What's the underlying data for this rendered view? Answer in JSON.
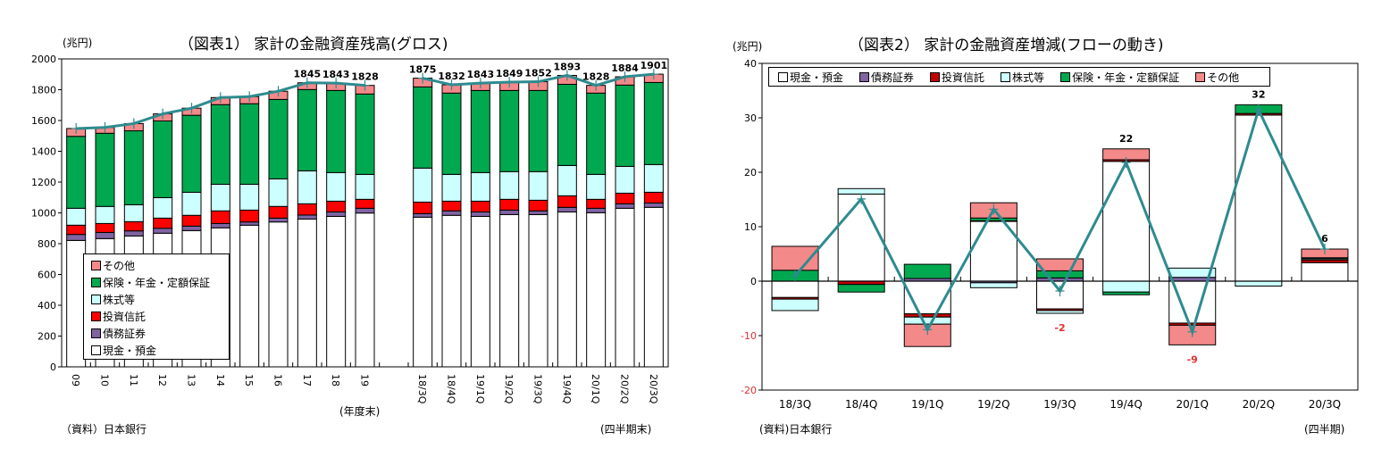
{
  "chart_data": [
    {
      "type": "bar",
      "stacked": true,
      "title": "（図表1） 家計の金融資産残高(グロス)",
      "ylabel": "(兆円)",
      "ylim": [
        0,
        2000
      ],
      "ytick_step": 200,
      "xnotes": [
        "(年度末)",
        "(四半期末)"
      ],
      "source": "（資料）日本銀行",
      "categories": [
        "09",
        "10",
        "11",
        "12",
        "13",
        "14",
        "15",
        "16",
        "17",
        "18",
        "19",
        "18/3Q",
        "18/4Q",
        "19/1Q",
        "19/2Q",
        "19/3Q",
        "19/4Q",
        "20/1Q",
        "20/2Q",
        "20/3Q"
      ],
      "series": [
        {
          "name": "現金・預金",
          "color": "#ffffff",
          "values": [
            821,
            833,
            850,
            868,
            885,
            903,
            920,
            941,
            960,
            977,
            999,
            972,
            984,
            977,
            989,
            989,
            1006,
            1001,
            1030,
            1036
          ]
        },
        {
          "name": "債務証券",
          "color": "#8064a2",
          "values": [
            39,
            40,
            33,
            32,
            29,
            28,
            21,
            25,
            26,
            29,
            31,
            23,
            29,
            29,
            29,
            24,
            30,
            29,
            29,
            28
          ]
        },
        {
          "name": "投資信託",
          "color": "#ff0000",
          "values": [
            60,
            58,
            60,
            66,
            70,
            82,
            77,
            76,
            73,
            70,
            58,
            75,
            63,
            70,
            70,
            69,
            75,
            58,
            69,
            70
          ]
        },
        {
          "name": "株式等",
          "color": "#ccffff",
          "values": [
            110,
            111,
            110,
            133,
            150,
            173,
            168,
            179,
            214,
            186,
            162,
            221,
            174,
            186,
            180,
            186,
            197,
            162,
            174,
            180
          ]
        },
        {
          "name": "保険・年金・定額保証",
          "color": "#00a94f",
          "values": [
            467,
            475,
            480,
            498,
            500,
            517,
            523,
            516,
            528,
            533,
            522,
            527,
            528,
            533,
            527,
            527,
            527,
            528,
            528,
            533
          ]
        },
        {
          "name": "その他",
          "color": "#f4898a",
          "values": [
            51,
            38,
            47,
            46,
            46,
            46,
            46,
            53,
            44,
            48,
            56,
            57,
            54,
            48,
            54,
            57,
            58,
            50,
            54,
            54
          ]
        }
      ],
      "total": [
        1548,
        1555,
        1580,
        1643,
        1680,
        1749,
        1755,
        1790,
        1845,
        1843,
        1828,
        1875,
        1832,
        1843,
        1849,
        1852,
        1893,
        1828,
        1884,
        1901
      ],
      "total_labels": [
        null,
        null,
        null,
        null,
        null,
        null,
        null,
        null,
        "1845",
        "1843",
        "1828",
        "1875",
        "1832",
        "1843",
        "1849",
        "1852",
        "1893",
        "1828",
        "1884",
        "1901"
      ],
      "line_color": "#2e8b8f",
      "legend_order": [
        5,
        4,
        3,
        2,
        1,
        0
      ],
      "legend_placement": "bottom-left"
    },
    {
      "type": "bar",
      "stacked": true,
      "title": "（図表2） 家計の金融資産増減(フローの動き)",
      "ylabel": "(兆円)",
      "ylim": [
        -20,
        40
      ],
      "ytick_step": 10,
      "xnote": "(四半期)",
      "source": "(資料)日本銀行",
      "categories": [
        "18/3Q",
        "18/4Q",
        "19/1Q",
        "19/2Q",
        "19/3Q",
        "19/4Q",
        "20/1Q",
        "20/2Q",
        "20/3Q"
      ],
      "series": [
        {
          "name": "現金・預金",
          "color": "#ffffff",
          "values": [
            -3.0,
            16.0,
            -6.0,
            11.0,
            -5.1,
            22.0,
            -7.7,
            30.5,
            3.4
          ]
        },
        {
          "name": "債務証券",
          "color": "#8064a2",
          "values": [
            0,
            0,
            0.5,
            -0.3,
            0.6,
            0,
            0.7,
            0,
            0
          ]
        },
        {
          "name": "投資信託",
          "color": "#c00000",
          "values": [
            -0.3,
            -0.6,
            -0.6,
            0.1,
            -0.3,
            0.3,
            -0.4,
            0.3,
            0.5
          ]
        },
        {
          "name": "株式等",
          "color": "#ccffff",
          "values": [
            -2.1,
            1.0,
            -1.3,
            -0.9,
            -0.5,
            -2.0,
            1.7,
            -0.9,
            0.2
          ]
        },
        {
          "name": "保険・年金・定額保証",
          "color": "#00a94f",
          "values": [
            2.0,
            -1.4,
            2.6,
            0.5,
            1.3,
            -0.5,
            0,
            1.6,
            0.2
          ]
        },
        {
          "name": "その他",
          "color": "#f4898a",
          "values": [
            4.4,
            0,
            -4.1,
            2.8,
            2.2,
            2.0,
            -3.6,
            0,
            1.6
          ]
        }
      ],
      "total": [
        1.0,
        15.1,
        -8.9,
        13.2,
        -1.8,
        21.8,
        -9.3,
        31.5,
        5.9
      ],
      "total_labels": [
        null,
        null,
        null,
        null,
        "-2",
        "22",
        "-9",
        "32",
        "6"
      ],
      "line_color": "#2e8b8f",
      "negative_color": "#e03030",
      "legend_placement": "top"
    }
  ]
}
